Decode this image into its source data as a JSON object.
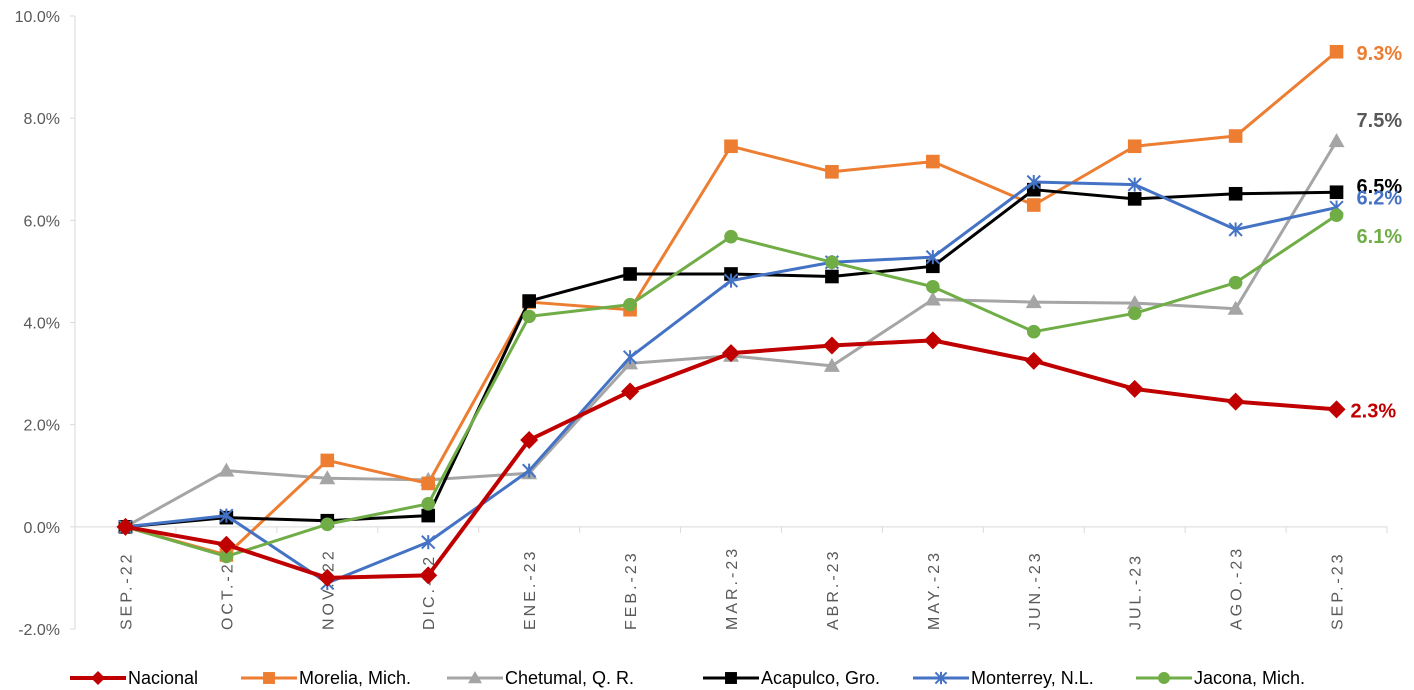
{
  "chart_data": {
    "type": "line",
    "title": "",
    "xlabel": "",
    "ylabel": "",
    "categories": [
      "SEP.-22",
      "OCT.-22",
      "NOV.-22",
      "DIC.-22",
      "ENE.-23",
      "FEB.-23",
      "MAR.-23",
      "ABR.-23",
      "MAY.-23",
      "JUN.-23",
      "JUL.-23",
      "AGO.-23",
      "SEP.-23"
    ],
    "ylim": [
      -2.0,
      10.0
    ],
    "yticks": [
      -2.0,
      0.0,
      2.0,
      4.0,
      6.0,
      8.0,
      10.0
    ],
    "ytick_labels": [
      "-2.0%",
      "0.0%",
      "2.0%",
      "4.0%",
      "6.0%",
      "8.0%",
      "10.0%"
    ],
    "grid": false,
    "legend_position": "bottom",
    "series": [
      {
        "name": "Nacional",
        "color": "#C00000",
        "marker": "diamond",
        "values": [
          0.0,
          -0.35,
          -1.0,
          -0.95,
          1.7,
          2.65,
          3.4,
          3.55,
          3.65,
          3.25,
          2.7,
          2.45,
          2.3
        ],
        "end_label": "2.3%"
      },
      {
        "name": "Morelia, Mich.",
        "color": "#ED7D31",
        "marker": "square",
        "values": [
          0.0,
          -0.55,
          1.3,
          0.85,
          4.4,
          4.25,
          7.45,
          6.95,
          7.15,
          6.3,
          7.45,
          7.65,
          9.3
        ],
        "end_label": "9.3%"
      },
      {
        "name": "Chetumal, Q. R.",
        "color": "#A5A5A5",
        "marker": "triangle",
        "values": [
          0.0,
          1.1,
          0.95,
          0.92,
          1.05,
          3.2,
          3.35,
          3.15,
          4.45,
          4.4,
          4.38,
          4.27,
          7.55
        ],
        "end_label": "7.5%"
      },
      {
        "name": "Acapulco, Gro.",
        "color": "#000000",
        "marker": "square",
        "values": [
          0.0,
          0.18,
          0.12,
          0.22,
          4.42,
          4.95,
          4.95,
          4.9,
          5.1,
          6.6,
          6.42,
          6.52,
          6.55
        ],
        "end_label": "6.5%"
      },
      {
        "name": "Monterrey, N.L.",
        "color": "#4472C4",
        "marker": "star",
        "values": [
          0.0,
          0.22,
          -1.1,
          -0.3,
          1.1,
          3.32,
          4.82,
          5.18,
          5.28,
          6.75,
          6.7,
          5.82,
          6.25
        ],
        "end_label": "6.2%"
      },
      {
        "name": "Jacona, Mich.",
        "color": "#70AD47",
        "marker": "circle",
        "values": [
          0.0,
          -0.58,
          0.05,
          0.45,
          4.12,
          4.35,
          5.68,
          5.18,
          4.7,
          3.82,
          4.18,
          4.78,
          6.1
        ],
        "end_label": "6.1%"
      }
    ]
  }
}
